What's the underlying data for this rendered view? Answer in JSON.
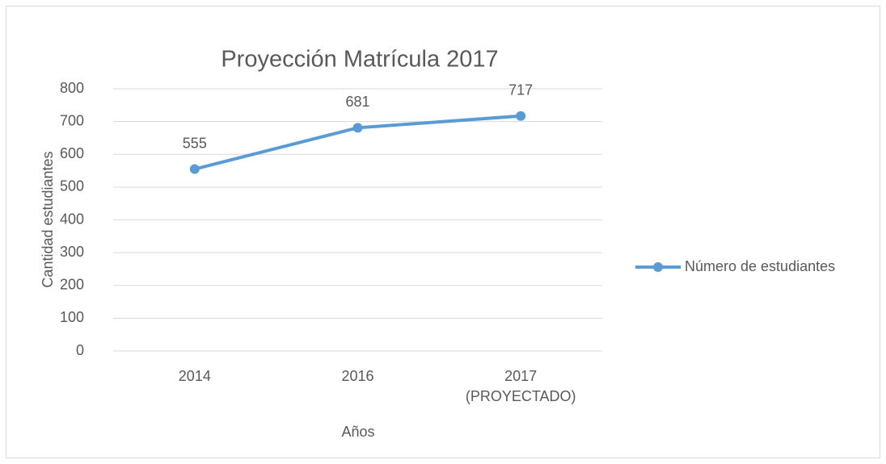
{
  "chart_data": {
    "type": "line",
    "title": "Proyección Matrícula 2017",
    "categories": [
      "2014",
      "2016",
      "2017 (PROYECTADO)"
    ],
    "series": [
      {
        "name": "Número de estudiantes",
        "color": "#5b9bd5",
        "values": [
          555,
          681,
          717
        ]
      }
    ],
    "ylim": [
      0,
      800
    ],
    "yticks": [
      0,
      100,
      200,
      300,
      400,
      500,
      600,
      700,
      800
    ],
    "xlabel": "Años",
    "ylabel": "Cantidad estudiantes",
    "grid": true,
    "legend": "right"
  }
}
